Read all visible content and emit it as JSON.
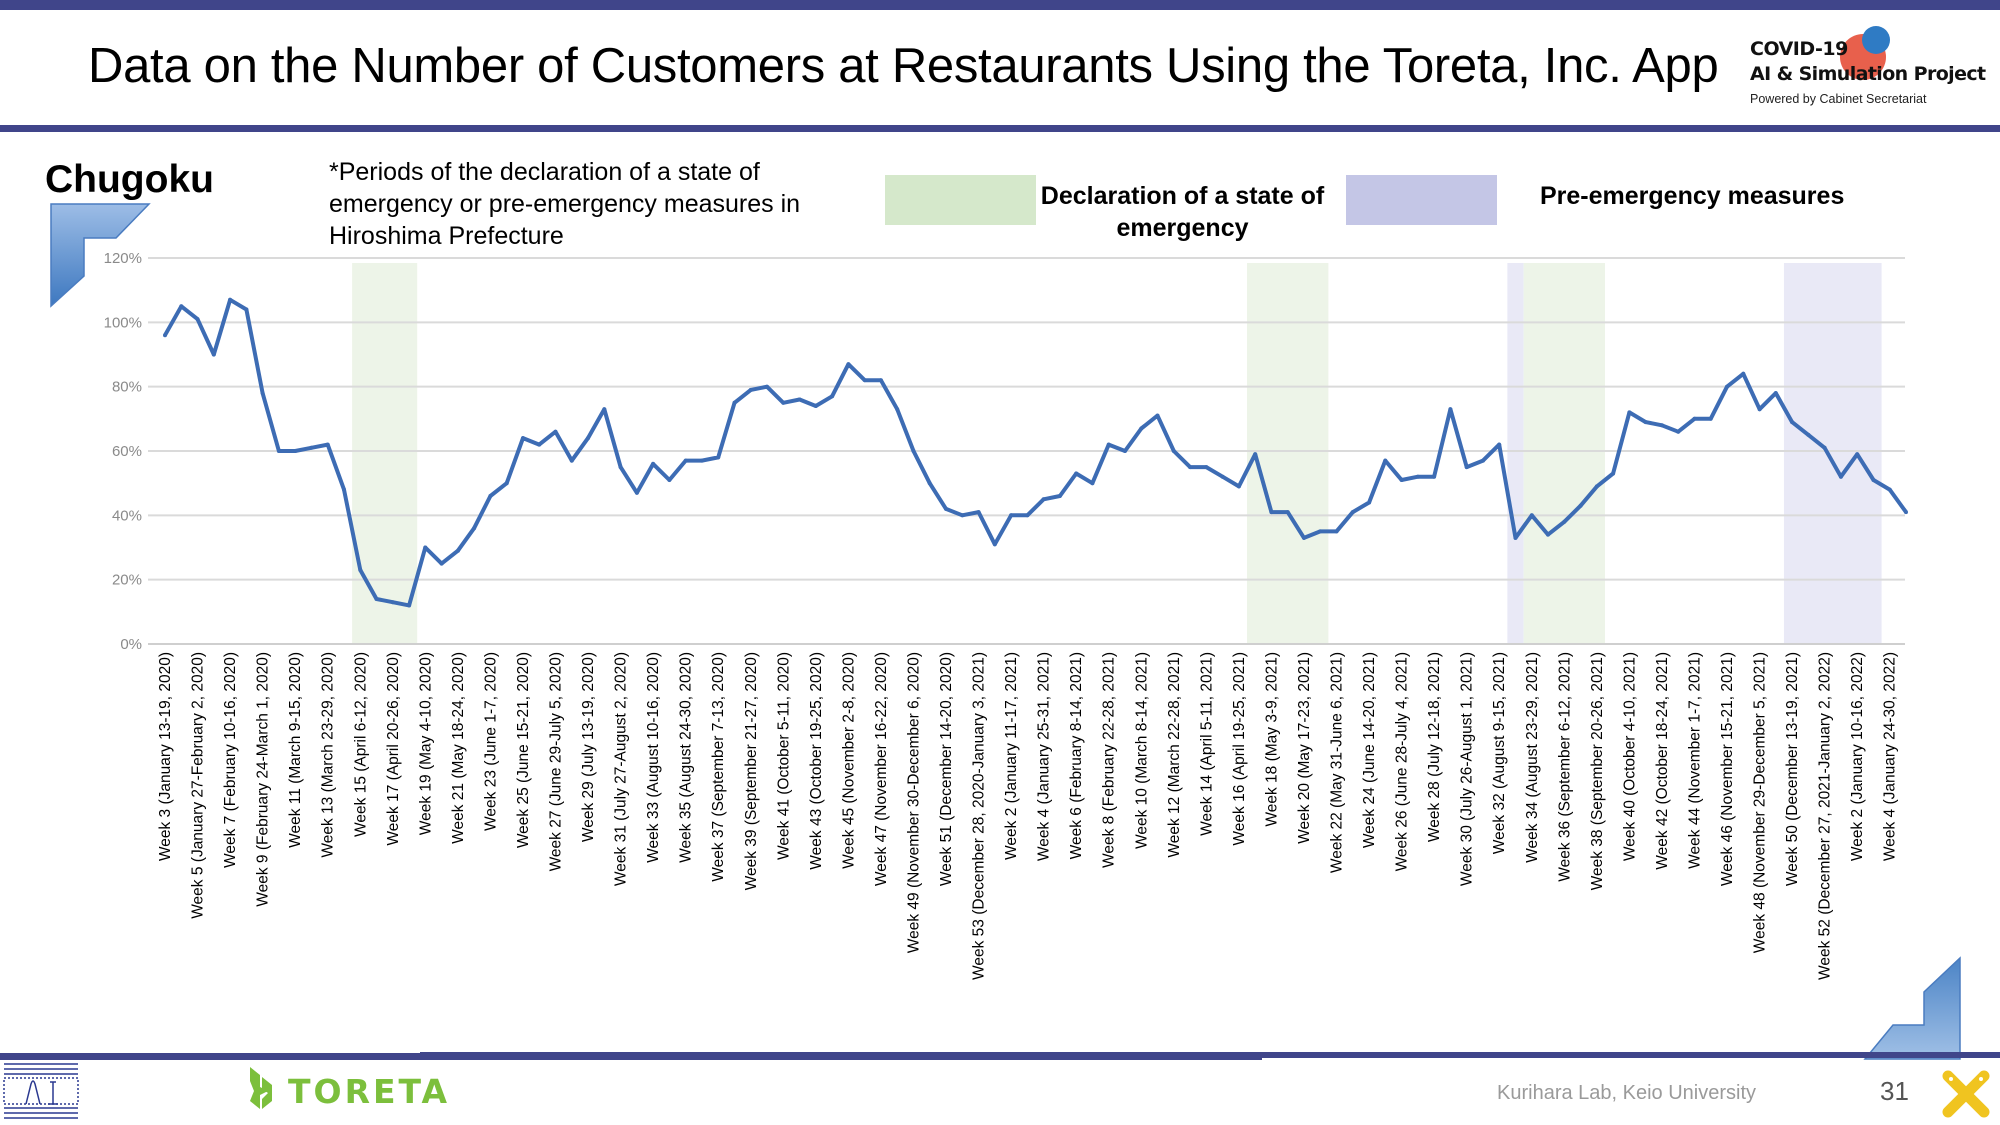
{
  "header": {
    "title": "Data on the Number of Customers at Restaurants Using the Toreta, Inc. App",
    "logo_line1": "COVID-19",
    "logo_line2": "AI & Simulation Project",
    "logo_line3": "Powered by Cabinet Secretariat"
  },
  "region": "Chugoku",
  "note": "*Periods of the declaration of a state of emergency or pre-emergency measures in Hiroshima Prefecture",
  "legend": {
    "emergency_label": "Declaration of a state of emergency",
    "pre_emergency_label": "Pre-emergency measures",
    "emergency_color": "#d5e8cb",
    "pre_emergency_color": "#c4c6e6"
  },
  "footer": {
    "toreta_logo": "TORETA",
    "lab": "Kurihara Lab, Keio University",
    "page_number": "31"
  },
  "colors": {
    "line": "#3d6cb4",
    "header_bar": "#40458a",
    "grid": "#d9d9d9"
  },
  "chart_data": {
    "type": "line",
    "title": "",
    "xlabel": "",
    "ylabel": "",
    "ylim": [
      0,
      120
    ],
    "y_ticks": [
      "0%",
      "20%",
      "40%",
      "60%",
      "80%",
      "100%",
      "120%"
    ],
    "y_tick_values": [
      0,
      20,
      40,
      60,
      80,
      100,
      120
    ],
    "grid": true,
    "x_tick_labels": [
      "Week 3 (January 13-19, 2020)",
      "Week 5 (January 27-February 2, 2020)",
      "Week 7 (February 10-16, 2020)",
      "Week 9 (February 24-March 1, 2020)",
      "Week 11 (March 9-15, 2020)",
      "Week 13 (March 23-29, 2020)",
      "Week 15 (April 6-12, 2020)",
      "Week 17 (April 20-26, 2020)",
      "Week 19 (May 4-10, 2020)",
      "Week 21 (May 18-24, 2020)",
      "Week 23 (June 1-7, 2020)",
      "Week 25 (June 15-21, 2020)",
      "Week 27 (June 29-July 5, 2020)",
      "Week 29 (July 13-19, 2020)",
      "Week 31 (July 27-August 2, 2020)",
      "Week 33 (August 10-16, 2020)",
      "Week 35 (August 24-30, 2020)",
      "Week 37 (September 7-13, 2020)",
      "Week 39 (September 21-27, 2020)",
      "Week 41 (October 5-11, 2020)",
      "Week 43 (October 19-25, 2020)",
      "Week 45 (November 2-8, 2020)",
      "Week 47 (November 16-22, 2020)",
      "Week 49 (November 30-December 6, 2020)",
      "Week 51 (December 14-20, 2020)",
      "Week 53 (December 28, 2020-January 3, 2021)",
      "Week 2 (January 11-17, 2021)",
      "Week 4 (January 25-31, 2021)",
      "Week 6 (February 8-14, 2021)",
      "Week 8 (February 22-28, 2021)",
      "Week 10 (March 8-14, 2021)",
      "Week 12 (March 22-28, 2021)",
      "Week 14 (April 5-11, 2021)",
      "Week 16 (April 19-25, 2021)",
      "Week 18 (May 3-9, 2021)",
      "Week 20 (May 17-23, 2021)",
      "Week 22 (May 31-June 6, 2021)",
      "Week 24 (June 14-20, 2021)",
      "Week 26 (June 28-July 4, 2021)",
      "Week 28 (July 12-18, 2021)",
      "Week 30 (July 26-August 1, 2021)",
      "Week 32 (August 9-15, 2021)",
      "Week 34 (August 23-29, 2021)",
      "Week 36 (September 6-12, 2021)",
      "Week 38 (September 20-26, 2021)",
      "Week 40 (October 4-10, 2021)",
      "Week 42 (October 18-24, 2021)",
      "Week 44 (November 1-7, 2021)",
      "Week 46 (November 15-21, 2021)",
      "Week 48 (November 29-December 5, 2021)",
      "Week 50 (December 13-19, 2021)",
      "Week 52 (December 27, 2021-January 2, 2022)",
      "Week 2 (January 10-16, 2022)",
      "Week 4 (January 24-30, 2022)"
    ],
    "series": [
      {
        "name": "Chugoku",
        "values": [
          96,
          105,
          101,
          90,
          107,
          104,
          78,
          60,
          60,
          61,
          62,
          48,
          23,
          14,
          13,
          12,
          30,
          25,
          29,
          36,
          46,
          50,
          64,
          62,
          66,
          57,
          64,
          73,
          55,
          47,
          56,
          51,
          57,
          57,
          58,
          75,
          79,
          80,
          75,
          76,
          74,
          77,
          87,
          82,
          82,
          73,
          60,
          50,
          42,
          40,
          41,
          31,
          40,
          40,
          45,
          46,
          53,
          50,
          62,
          60,
          67,
          71,
          60,
          55,
          55,
          52,
          49,
          59,
          41,
          41,
          33,
          35,
          35,
          41,
          44,
          57,
          51,
          52,
          52,
          73,
          55,
          57,
          62,
          33,
          40,
          34,
          38,
          43,
          49,
          53,
          72,
          69,
          68,
          66,
          70,
          70,
          80,
          84,
          73,
          78,
          69,
          65,
          61,
          52,
          59,
          51,
          48,
          41
        ]
      }
    ],
    "shaded_periods": [
      {
        "type": "Declaration of a state of emergency",
        "start_index": 12,
        "end_index": 15
      },
      {
        "type": "Declaration of a state of emergency",
        "start_index": 67,
        "end_index": 71
      },
      {
        "type": "Pre-emergency measures",
        "start_index": 83,
        "end_index": 83
      },
      {
        "type": "Declaration of a state of emergency",
        "start_index": 84,
        "end_index": 88
      },
      {
        "type": "Pre-emergency measures",
        "start_index": 100,
        "end_index": 105
      }
    ]
  }
}
